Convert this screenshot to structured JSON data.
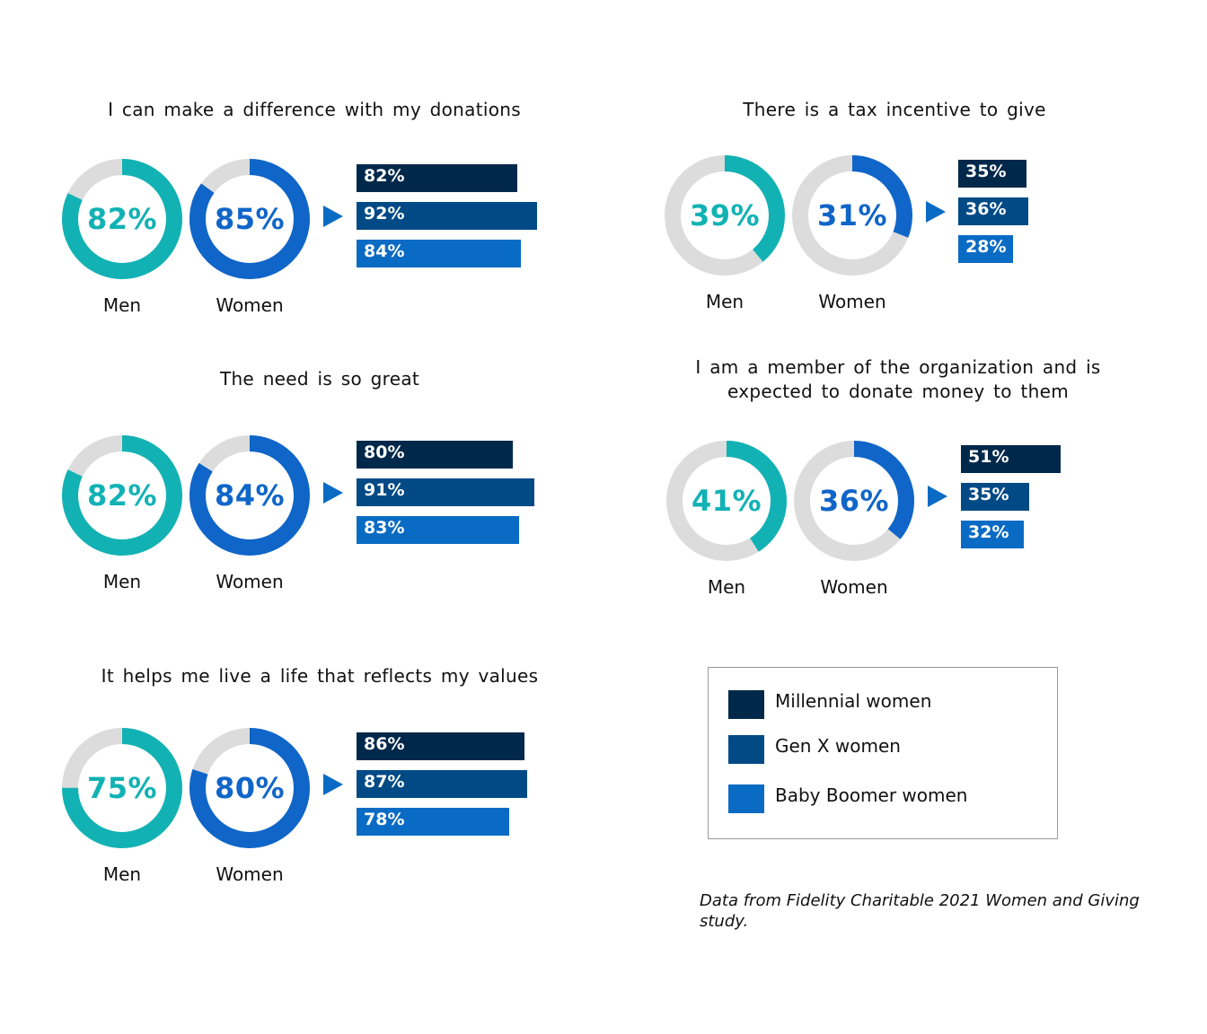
{
  "colors": {
    "men": "#12b2b4",
    "women": "#1065c8",
    "track": "#dcdcdc",
    "millennial": "#00284a",
    "genx": "#014a86",
    "boomer": "#0a6bc4"
  },
  "chart_data": [
    {
      "type": "donut+bar",
      "title": "I can make a difference with my donations",
      "men": {
        "label": "Men",
        "value": 82,
        "text": "82%"
      },
      "women": {
        "label": "Women",
        "value": 85,
        "text": "85%"
      },
      "bars": [
        {
          "series": "Millennial women",
          "value": 82,
          "text": "82%"
        },
        {
          "series": "Gen X women",
          "value": 92,
          "text": "92%"
        },
        {
          "series": "Baby Boomer women",
          "value": 84,
          "text": "84%"
        }
      ]
    },
    {
      "type": "donut+bar",
      "title": "There is a tax incentive to give",
      "men": {
        "label": "Men",
        "value": 39,
        "text": "39%"
      },
      "women": {
        "label": "Women",
        "value": 31,
        "text": "31%"
      },
      "bars": [
        {
          "series": "Millennial women",
          "value": 35,
          "text": "35%"
        },
        {
          "series": "Gen X women",
          "value": 36,
          "text": "36%"
        },
        {
          "series": "Baby Boomer women",
          "value": 28,
          "text": "28%"
        }
      ]
    },
    {
      "type": "donut+bar",
      "title": "The need is so great",
      "men": {
        "label": "Men",
        "value": 82,
        "text": "82%"
      },
      "women": {
        "label": "Women",
        "value": 84,
        "text": "84%"
      },
      "bars": [
        {
          "series": "Millennial women",
          "value": 80,
          "text": "80%"
        },
        {
          "series": "Gen X women",
          "value": 91,
          "text": "91%"
        },
        {
          "series": "Baby Boomer women",
          "value": 83,
          "text": "83%"
        }
      ]
    },
    {
      "type": "donut+bar",
      "title": "I am a member of the organization and is expected to donate money to them",
      "men": {
        "label": "Men",
        "value": 41,
        "text": "41%"
      },
      "women": {
        "label": "Women",
        "value": 36,
        "text": "36%"
      },
      "bars": [
        {
          "series": "Millennial women",
          "value": 51,
          "text": "51%"
        },
        {
          "series": "Gen X women",
          "value": 35,
          "text": "35%"
        },
        {
          "series": "Baby Boomer women",
          "value": 32,
          "text": "32%"
        }
      ]
    },
    {
      "type": "donut+bar",
      "title": "It helps me live a life that reflects my values",
      "men": {
        "label": "Men",
        "value": 75,
        "text": "75%"
      },
      "women": {
        "label": "Women",
        "value": 80,
        "text": "80%"
      },
      "bars": [
        {
          "series": "Millennial women",
          "value": 86,
          "text": "86%"
        },
        {
          "series": "Gen X women",
          "value": 87,
          "text": "87%"
        },
        {
          "series": "Baby Boomer women",
          "value": 78,
          "text": "78%"
        }
      ]
    }
  ],
  "legend": [
    {
      "label": "Millennial women",
      "color": "#00284a"
    },
    {
      "label": "Gen X women",
      "color": "#014a86"
    },
    {
      "label": "Baby Boomer women",
      "color": "#0a6bc4"
    }
  ],
  "source_note": "Data from Fidelity Charitable 2021 Women and Giving study."
}
